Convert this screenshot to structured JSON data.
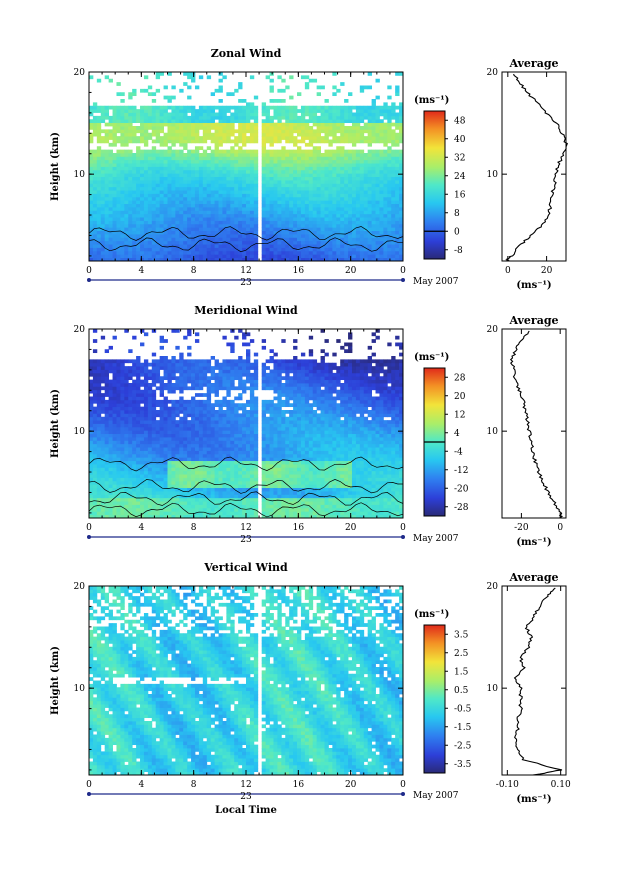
{
  "chart_data": [
    {
      "type": "heatmap",
      "title": "Zonal Wind",
      "ylabel": "Height (km)",
      "yticks": [
        "20",
        "10"
      ],
      "ylim": [
        1.5,
        20
      ],
      "xticks": [
        "0",
        "4",
        "8",
        "12",
        "16",
        "20",
        "0"
      ],
      "xlim": [
        0,
        24
      ],
      "date_label": "23",
      "month_label": "May 2007",
      "colorbar": {
        "unit_label": "(ms⁻¹)",
        "ticks": [
          "48",
          "40",
          "32",
          "24",
          "16",
          "8",
          "0",
          "-8"
        ],
        "range": [
          -12,
          52
        ]
      },
      "profile": {
        "title": "Average",
        "yticks": [
          "20",
          "10"
        ],
        "xticks": [
          "0",
          "20"
        ],
        "xlim": [
          -3,
          30
        ],
        "xlabel": "(ms⁻¹)",
        "height": [
          1.5,
          2,
          3,
          4,
          5,
          6,
          7,
          8,
          9,
          10,
          11,
          12,
          13,
          14,
          15,
          16,
          17,
          18,
          19,
          19.8
        ],
        "value": [
          -1,
          2,
          6,
          12,
          18,
          21,
          22,
          23,
          24,
          25,
          26,
          29,
          30,
          28,
          25,
          20,
          15,
          10,
          6,
          3
        ]
      }
    },
    {
      "type": "heatmap",
      "title": "Meridional Wind",
      "ylabel": "Height (km)",
      "yticks": [
        "20",
        "10"
      ],
      "ylim": [
        1.5,
        20
      ],
      "xticks": [
        "0",
        "4",
        "8",
        "12",
        "16",
        "20",
        "0"
      ],
      "xlim": [
        0,
        24
      ],
      "date_label": "23",
      "month_label": "May 2007",
      "colorbar": {
        "unit_label": "(ms⁻¹)",
        "ticks": [
          "28",
          "20",
          "12",
          "4",
          "-4",
          "-12",
          "-20",
          "-28"
        ],
        "range": [
          -32,
          32
        ]
      },
      "profile": {
        "title": "Average",
        "yticks": [
          "20",
          "10"
        ],
        "xticks": [
          "-20",
          "0"
        ],
        "xlim": [
          -30,
          3
        ],
        "xlabel": "(ms⁻¹)",
        "height": [
          1.5,
          2,
          3,
          4,
          5,
          6,
          7,
          8,
          9,
          10,
          11,
          12,
          13,
          14,
          15,
          16,
          17,
          18,
          19,
          19.8
        ],
        "value": [
          1,
          0,
          -3,
          -6,
          -9,
          -11,
          -13,
          -14,
          -15,
          -16,
          -17,
          -18,
          -19,
          -21,
          -23,
          -24,
          -25,
          -23,
          -20,
          -16
        ]
      }
    },
    {
      "type": "heatmap",
      "title": "Vertical Wind",
      "ylabel": "Height (km)",
      "xlabel": "Local Time",
      "yticks": [
        "20",
        "10"
      ],
      "ylim": [
        1.5,
        20
      ],
      "xticks": [
        "0",
        "4",
        "8",
        "12",
        "16",
        "20",
        "0"
      ],
      "xlim": [
        0,
        24
      ],
      "date_label": "23",
      "month_label": "May 2007",
      "colorbar": {
        "unit_label": "(ms⁻¹)",
        "ticks": [
          "3.5",
          "2.5",
          "1.5",
          "0.5",
          "-0.5",
          "-1.5",
          "-2.5",
          "-3.5"
        ],
        "range": [
          -4,
          4
        ]
      },
      "profile": {
        "title": "Average",
        "yticks": [
          "20",
          "10"
        ],
        "xticks": [
          "-0.10",
          "0.10"
        ],
        "xlim": [
          -0.12,
          0.12
        ],
        "xlabel": "(ms⁻¹)",
        "height": [
          1.5,
          2,
          3,
          4,
          5,
          6,
          7,
          8,
          9,
          10,
          11,
          12,
          13,
          14,
          15,
          16,
          17,
          18,
          19,
          19.8
        ],
        "value": [
          0.0,
          0.1,
          -0.04,
          -0.06,
          -0.07,
          -0.06,
          -0.06,
          -0.05,
          -0.05,
          -0.05,
          -0.07,
          -0.04,
          -0.05,
          -0.02,
          -0.01,
          -0.03,
          0.0,
          0.02,
          0.05,
          0.08
        ]
      }
    }
  ]
}
